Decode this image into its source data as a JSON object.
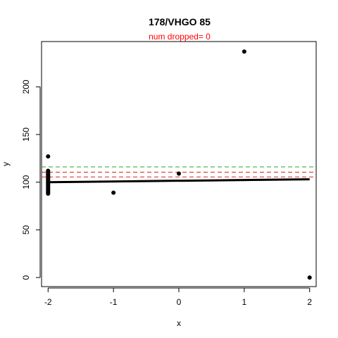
{
  "chart_data": {
    "type": "scatter",
    "title": "178/VHGO 85",
    "subtitle": "num dropped= 0",
    "xlabel": "x",
    "ylabel": "y",
    "xlim": [
      -2.1,
      2.1
    ],
    "ylim": [
      -9.5,
      247.5
    ],
    "x_ticks": [
      -2,
      -1,
      0,
      1,
      2
    ],
    "x_tick_labels": [
      "-2",
      "-1",
      "0",
      "1",
      "2"
    ],
    "y_ticks": [
      0,
      50,
      100,
      150,
      200
    ],
    "y_tick_labels": [
      "0",
      "50",
      "100",
      "150",
      "200"
    ],
    "grid": false,
    "points": [
      {
        "x": -2,
        "y": 127
      },
      {
        "x": -2,
        "y": 112
      },
      {
        "x": -2,
        "y": 111
      },
      {
        "x": -2,
        "y": 110
      },
      {
        "x": -2,
        "y": 109
      },
      {
        "x": -2,
        "y": 108
      },
      {
        "x": -2,
        "y": 107
      },
      {
        "x": -2,
        "y": 106
      },
      {
        "x": -2,
        "y": 105
      },
      {
        "x": -2,
        "y": 104
      },
      {
        "x": -2,
        "y": 103
      },
      {
        "x": -2,
        "y": 102
      },
      {
        "x": -2,
        "y": 101
      },
      {
        "x": -2,
        "y": 100
      },
      {
        "x": -2,
        "y": 99
      },
      {
        "x": -2,
        "y": 98
      },
      {
        "x": -2,
        "y": 97
      },
      {
        "x": -2,
        "y": 96
      },
      {
        "x": -2,
        "y": 95
      },
      {
        "x": -2,
        "y": 94
      },
      {
        "x": -2,
        "y": 93
      },
      {
        "x": -2,
        "y": 92
      },
      {
        "x": -2,
        "y": 91
      },
      {
        "x": -2,
        "y": 90
      },
      {
        "x": -2,
        "y": 89
      },
      {
        "x": -2,
        "y": 88
      },
      {
        "x": -1,
        "y": 89
      },
      {
        "x": 0,
        "y": 109
      },
      {
        "x": 1,
        "y": 237
      },
      {
        "x": 2,
        "y": 0
      }
    ],
    "fit_line": {
      "x": [
        -2,
        2
      ],
      "y": [
        100,
        103
      ],
      "color": "#000000"
    },
    "reference_lines": [
      {
        "y": 116,
        "color": "#22aa22",
        "style": "dashed"
      },
      {
        "y": 110.5,
        "color": "#dd2222",
        "style": "dashed"
      },
      {
        "y": 105.5,
        "color": "#dd2222",
        "style": "dashed"
      }
    ],
    "title_color": "#000000",
    "subtitle_color": "#ff0000"
  }
}
